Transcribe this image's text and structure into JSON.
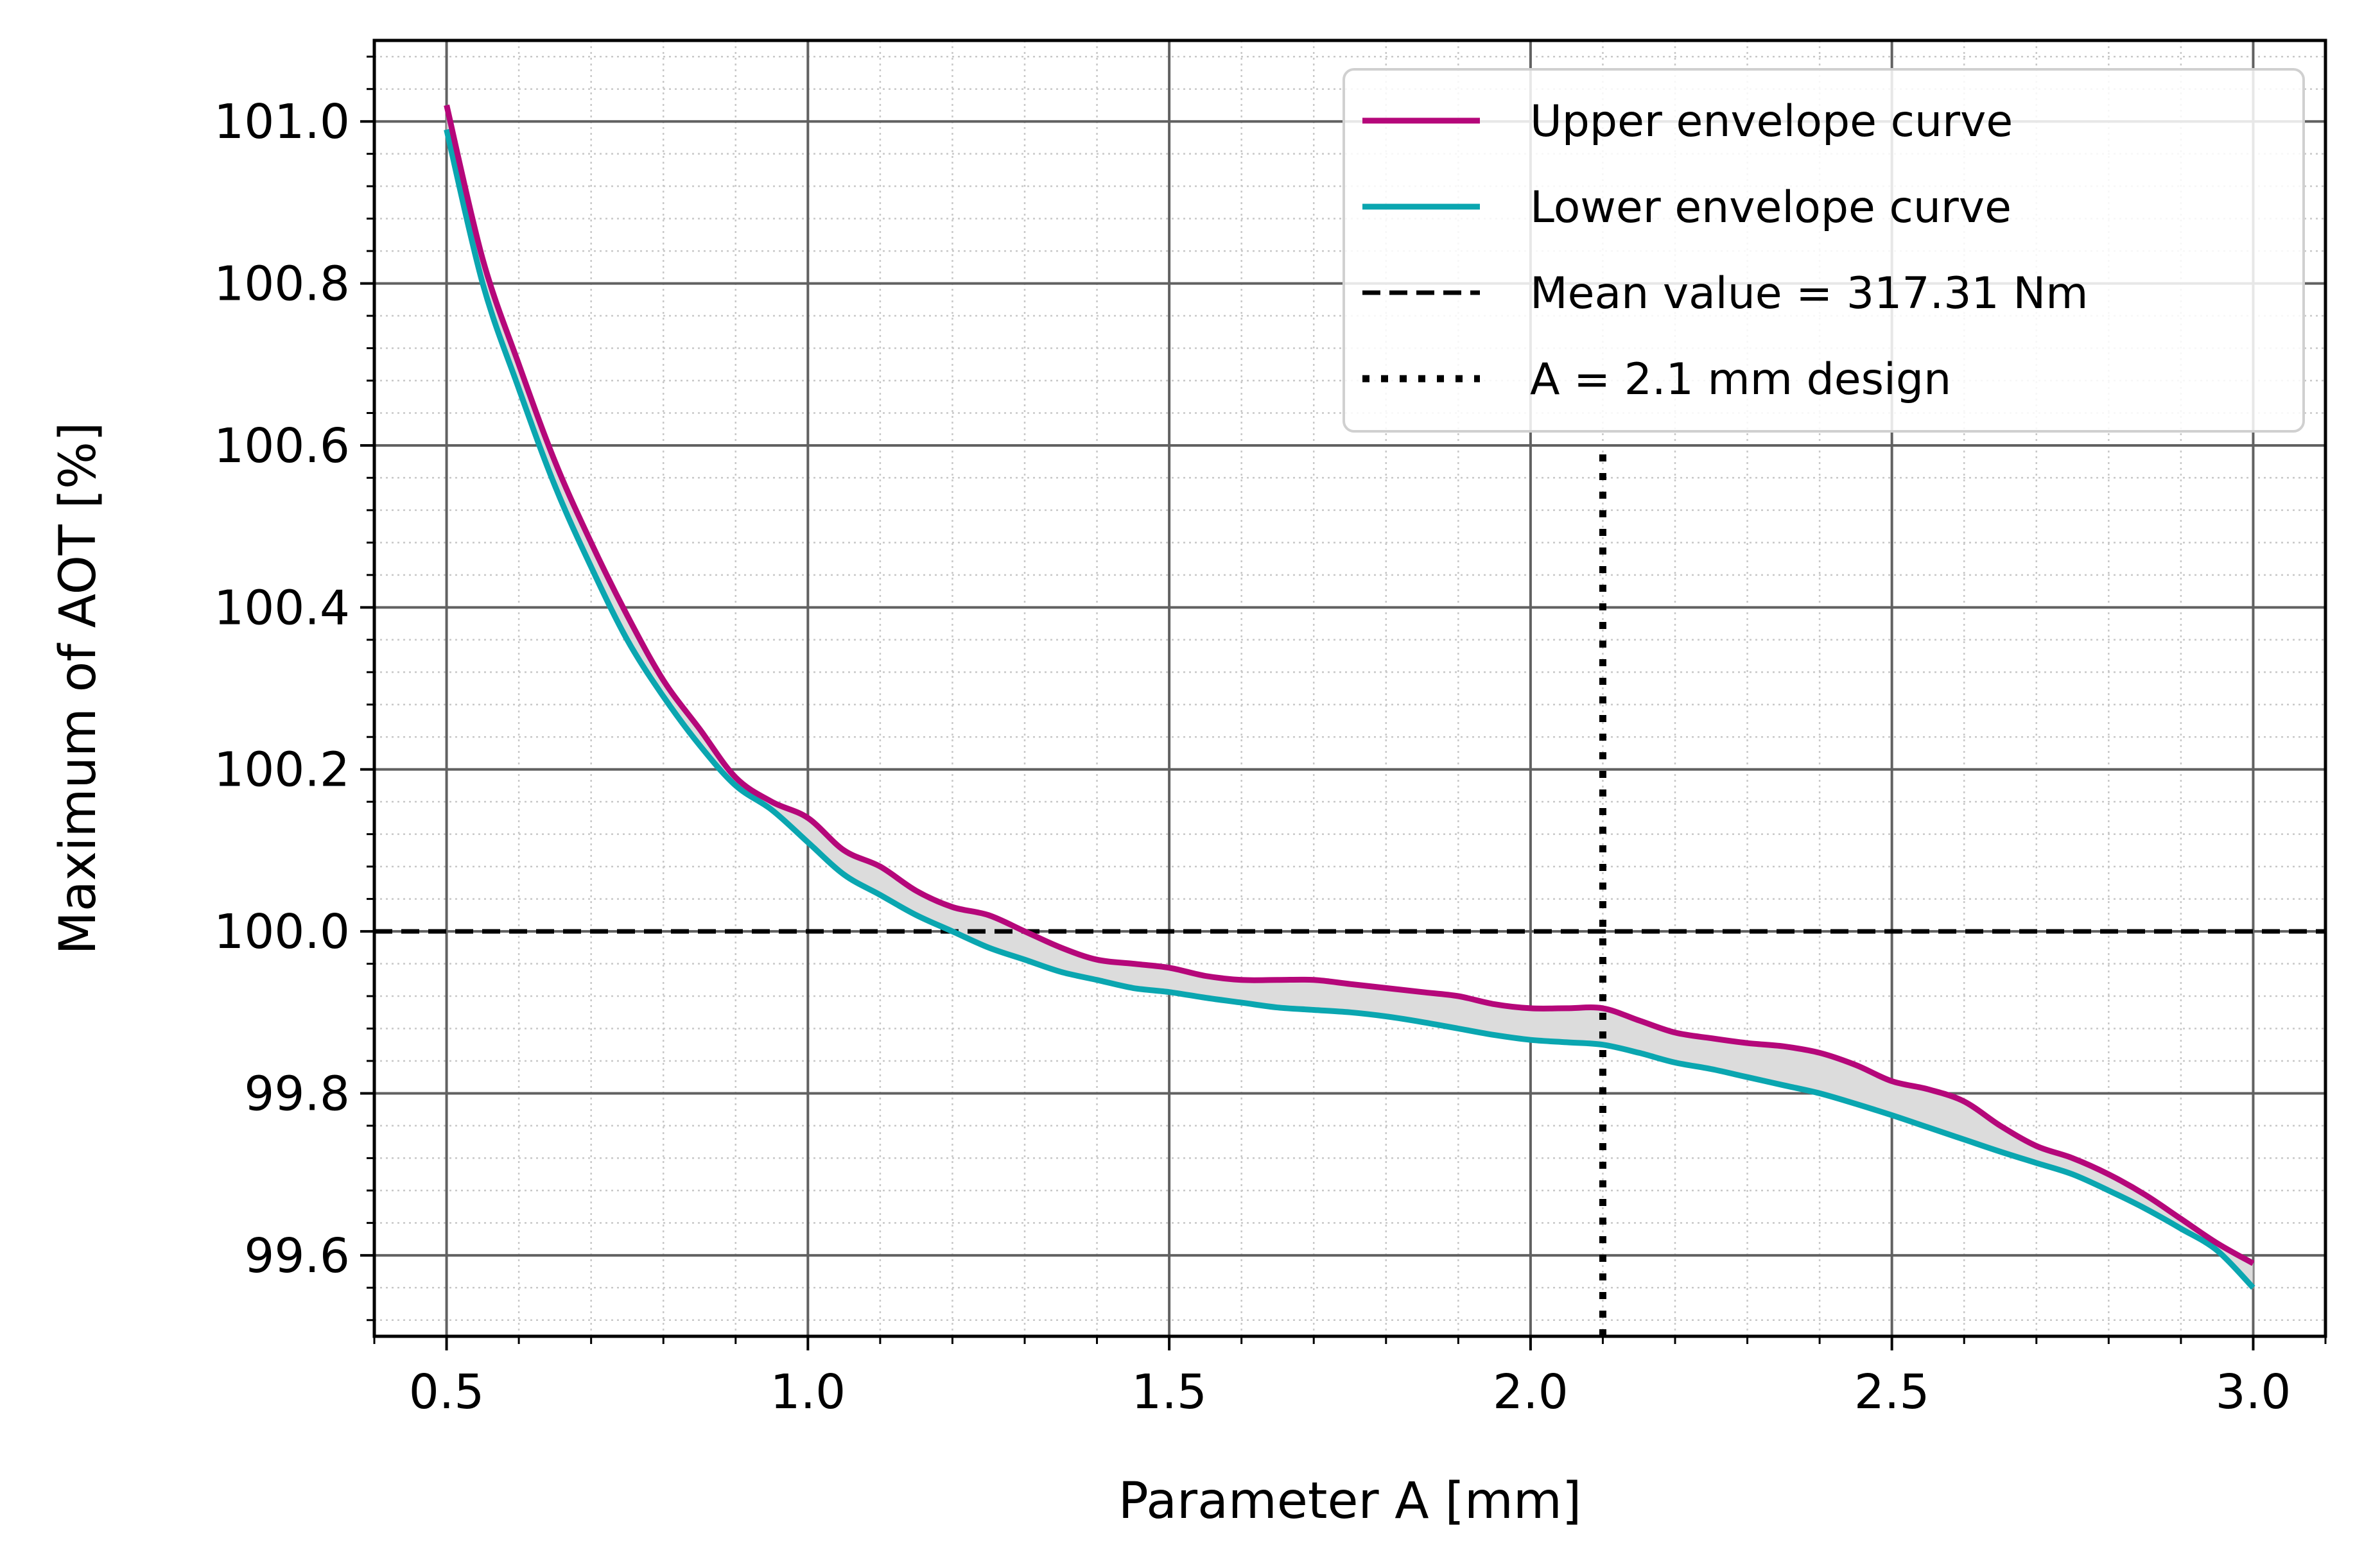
{
  "chart_data": {
    "type": "line",
    "xlabel": "Parameter A [mm]",
    "ylabel": "Maximum of AOT [%]",
    "xlim": [
      0.4,
      3.1
    ],
    "ylim": [
      99.5,
      101.1
    ],
    "xticks": [
      0.5,
      1.0,
      1.5,
      2.0,
      2.5,
      3.0
    ],
    "xtick_labels": [
      "0.5",
      "1.0",
      "1.5",
      "2.0",
      "2.5",
      "3.0"
    ],
    "yticks": [
      99.6,
      99.8,
      100.0,
      100.2,
      100.4,
      100.6,
      100.8,
      101.0
    ],
    "ytick_labels": [
      "99.6",
      "99.8",
      "100.0",
      "100.2",
      "100.4",
      "100.6",
      "100.8",
      "101.0"
    ],
    "grid": true,
    "minor_grid": true,
    "legend_position": "top-right",
    "shaded_band_between_envelopes": true,
    "series": [
      {
        "name": "Upper envelope curve",
        "color": "#b5077a",
        "style": "solid",
        "x": [
          0.5,
          0.55,
          0.6,
          0.65,
          0.7,
          0.75,
          0.8,
          0.85,
          0.9,
          0.95,
          1.0,
          1.05,
          1.1,
          1.15,
          1.2,
          1.25,
          1.3,
          1.35,
          1.4,
          1.45,
          1.5,
          1.55,
          1.6,
          1.65,
          1.7,
          1.75,
          1.8,
          1.85,
          1.9,
          1.95,
          2.0,
          2.05,
          2.1,
          2.15,
          2.2,
          2.25,
          2.3,
          2.35,
          2.4,
          2.45,
          2.5,
          2.55,
          2.6,
          2.65,
          2.7,
          2.75,
          2.8,
          2.85,
          2.9,
          2.95,
          3.0
        ],
        "y": [
          101.02,
          100.83,
          100.7,
          100.58,
          100.48,
          100.39,
          100.31,
          100.25,
          100.19,
          100.16,
          100.14,
          100.1,
          100.08,
          100.05,
          100.03,
          100.02,
          100.0,
          99.98,
          99.965,
          99.96,
          99.955,
          99.945,
          99.94,
          99.94,
          99.94,
          99.935,
          99.93,
          99.925,
          99.92,
          99.91,
          99.905,
          99.905,
          99.905,
          99.89,
          99.875,
          99.868,
          99.862,
          99.858,
          99.85,
          99.835,
          99.815,
          99.805,
          99.79,
          99.76,
          99.735,
          99.72,
          99.7,
          99.675,
          99.645,
          99.615,
          99.59
        ]
      },
      {
        "name": "Lower envelope curve",
        "color": "#0aa6b0",
        "style": "solid",
        "x": [
          0.5,
          0.55,
          0.6,
          0.65,
          0.7,
          0.75,
          0.8,
          0.85,
          0.9,
          0.95,
          1.0,
          1.05,
          1.1,
          1.15,
          1.2,
          1.25,
          1.3,
          1.35,
          1.4,
          1.45,
          1.5,
          1.55,
          1.6,
          1.65,
          1.7,
          1.75,
          1.8,
          1.85,
          1.9,
          1.95,
          2.0,
          2.05,
          2.1,
          2.15,
          2.2,
          2.25,
          2.3,
          2.35,
          2.4,
          2.45,
          2.5,
          2.55,
          2.6,
          2.65,
          2.7,
          2.75,
          2.8,
          2.85,
          2.9,
          2.95,
          3.0
        ],
        "y": [
          100.99,
          100.8,
          100.67,
          100.55,
          100.45,
          100.36,
          100.29,
          100.23,
          100.18,
          100.15,
          100.11,
          100.07,
          100.045,
          100.02,
          100.0,
          99.98,
          99.965,
          99.95,
          99.94,
          99.93,
          99.925,
          99.918,
          99.912,
          99.906,
          99.903,
          99.9,
          99.895,
          99.888,
          99.88,
          99.872,
          99.866,
          99.863,
          99.86,
          99.85,
          99.838,
          99.83,
          99.82,
          99.81,
          99.8,
          99.787,
          99.773,
          99.758,
          99.743,
          99.728,
          99.714,
          99.7,
          99.68,
          99.658,
          99.633,
          99.606,
          99.56
        ]
      },
      {
        "name": "Mean value = 317.31 Nm",
        "color": "#000000",
        "style": "dashed",
        "orientation": "horizontal",
        "y_value": 100.0
      },
      {
        "name": "A = 2.1 mm design",
        "color": "#000000",
        "style": "dotted",
        "orientation": "vertical",
        "x_value": 2.1,
        "y_from": 99.5,
        "y_to": 100.6
      }
    ]
  }
}
